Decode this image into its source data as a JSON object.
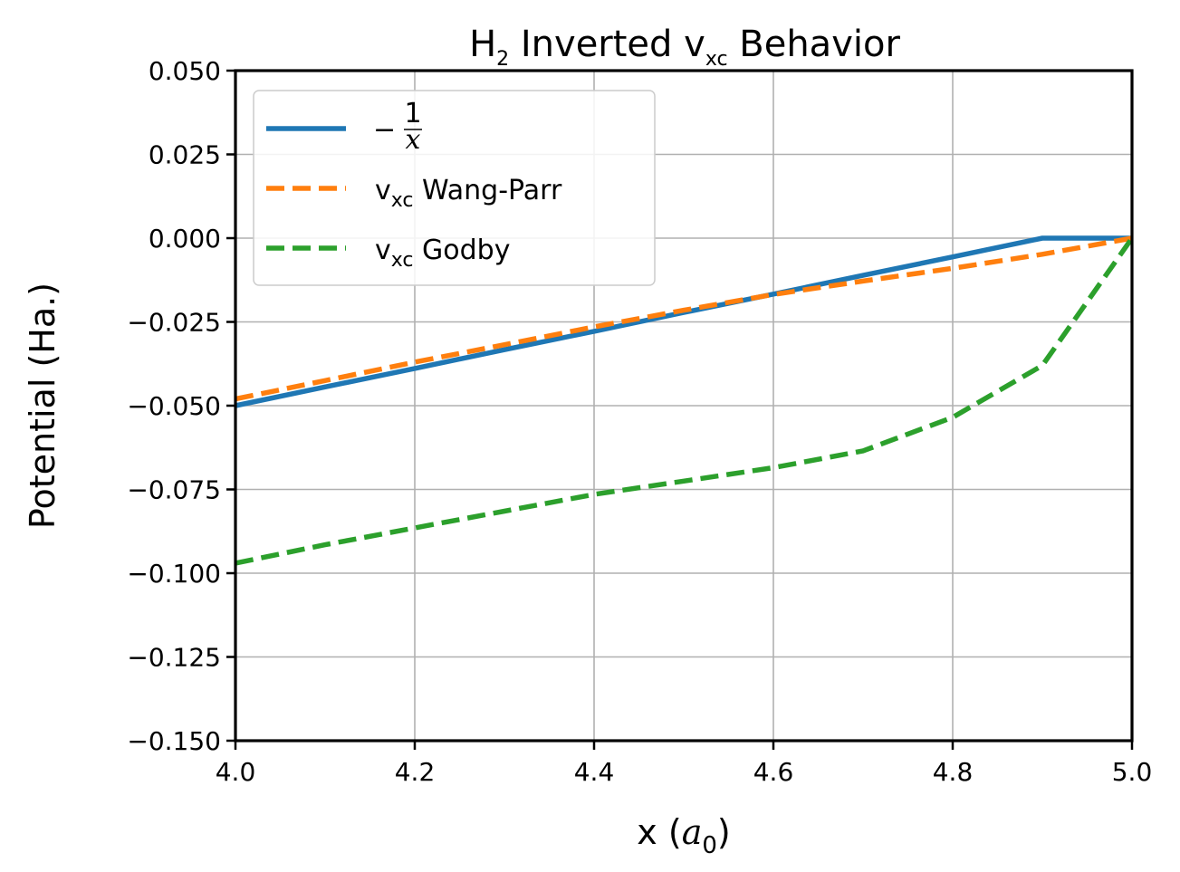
{
  "chart_data": {
    "type": "line",
    "title": {
      "main": "H",
      "sub1": "2",
      "mid": " Inverted v",
      "sub2": "xc",
      "tail": " Behavior"
    },
    "xlabel": {
      "prefix": "x (",
      "var": "a",
      "sub": "0",
      "suffix": ")"
    },
    "ylabel": "Potential (Ha.)",
    "xlim": [
      4.0,
      5.0
    ],
    "ylim": [
      -0.15,
      0.05
    ],
    "xticks": [
      4.0,
      4.2,
      4.4,
      4.6,
      4.8,
      5.0
    ],
    "xtick_labels": [
      "4.0",
      "4.2",
      "4.4",
      "4.6",
      "4.8",
      "5.0"
    ],
    "yticks": [
      -0.15,
      -0.125,
      -0.1,
      -0.075,
      -0.05,
      -0.025,
      0.0,
      0.025,
      0.05
    ],
    "ytick_labels": [
      "−0.150",
      "−0.125",
      "−0.100",
      "−0.075",
      "−0.050",
      "−0.025",
      "0.000",
      "0.025",
      "0.050"
    ],
    "grid": true,
    "legend_position": "top-left",
    "series": [
      {
        "name": "−¹⁄ₓ",
        "legend": {
          "prefix": "−",
          "num": "1",
          "den": "x"
        },
        "color": "#1f77b4",
        "dash": "solid",
        "x": [
          4.0,
          4.1,
          4.2,
          4.3,
          4.4,
          4.5,
          4.6,
          4.7,
          4.8,
          4.9,
          5.0
        ],
        "y": [
          -0.05,
          -0.0444,
          -0.0389,
          -0.0333,
          -0.0278,
          -0.0222,
          -0.0167,
          -0.0111,
          -0.0056,
          0.0,
          0.0
        ]
      },
      {
        "name": "vₓᴄ Wang-Parr",
        "legend": {
          "prefix": "v",
          "sub": "xc",
          "suffix": " Wang-Parr"
        },
        "color": "#ff7f0e",
        "dash": "dashed",
        "x": [
          4.0,
          4.1,
          4.2,
          4.3,
          4.4,
          4.5,
          4.6,
          4.7,
          4.8,
          4.9,
          5.0
        ],
        "y": [
          -0.048,
          -0.0425,
          -0.037,
          -0.0318,
          -0.0265,
          -0.0215,
          -0.0168,
          -0.0128,
          -0.009,
          -0.0048,
          0.0
        ]
      },
      {
        "name": "vₓᴄ Godby",
        "legend": {
          "prefix": "v",
          "sub": "xc",
          "suffix": " Godby"
        },
        "color": "#2ca02c",
        "dash": "dashed",
        "x": [
          4.0,
          4.1,
          4.2,
          4.3,
          4.4,
          4.5,
          4.6,
          4.7,
          4.8,
          4.9,
          5.0
        ],
        "y": [
          -0.097,
          -0.0915,
          -0.0865,
          -0.0815,
          -0.0765,
          -0.0725,
          -0.0685,
          -0.0635,
          -0.0535,
          -0.038,
          0.0
        ]
      }
    ]
  }
}
